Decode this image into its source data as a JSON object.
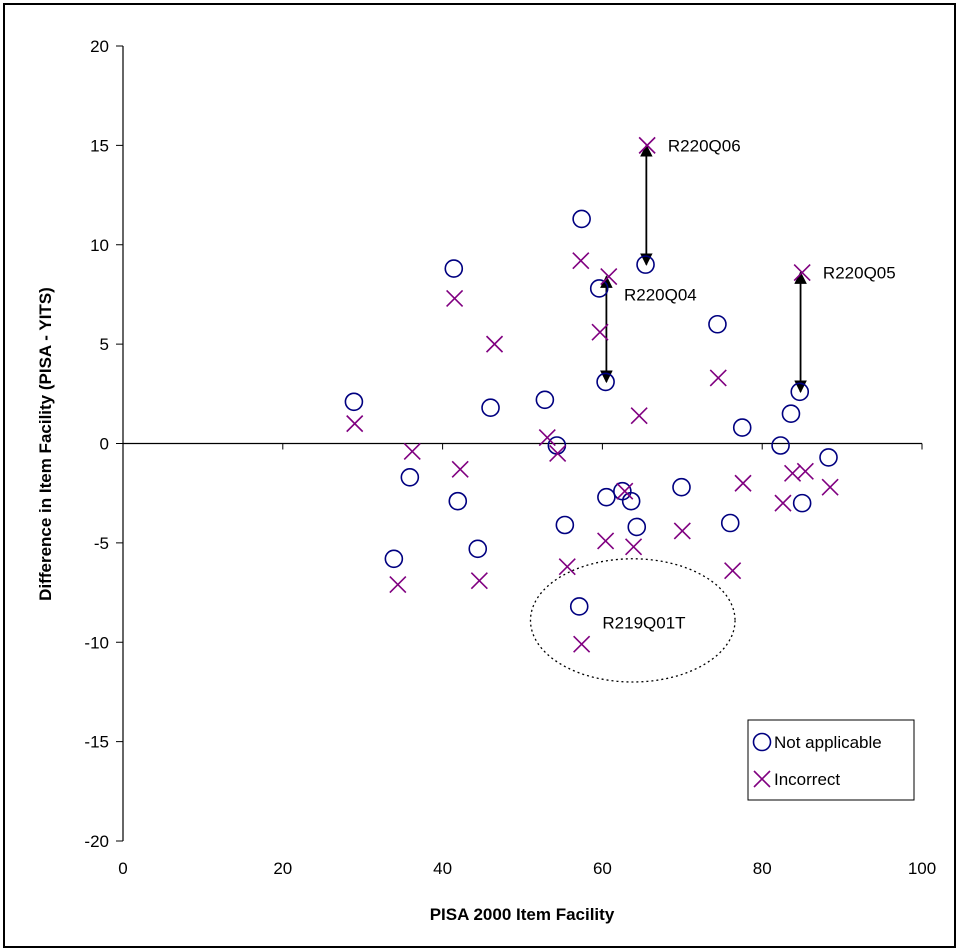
{
  "chart_data": {
    "type": "scatter",
    "title": "",
    "xlabel": "PISA 2000 Item Facility",
    "ylabel": "Difference in Item Facility (PISA - YITS)",
    "xlim": [
      0,
      100
    ],
    "ylim": [
      -20,
      20
    ],
    "x_ticks": [
      "0",
      "20",
      "40",
      "60",
      "80",
      "100"
    ],
    "y_ticks": [
      "20",
      "15",
      "10",
      "5",
      "0",
      "-5",
      "-10",
      "-15",
      "-20"
    ],
    "grid": false,
    "legend_position": "bottom-right",
    "series": [
      {
        "name": "Not applicable",
        "marker": "circle",
        "color": "#000080",
        "points": [
          [
            28.9,
            2.1
          ],
          [
            33.9,
            -5.8
          ],
          [
            35.9,
            -1.7
          ],
          [
            41.4,
            8.8
          ],
          [
            41.9,
            -2.9
          ],
          [
            44.4,
            -5.3
          ],
          [
            46.0,
            1.8
          ],
          [
            52.8,
            2.2
          ],
          [
            54.3,
            -0.1
          ],
          [
            55.3,
            -4.1
          ],
          [
            57.1,
            -8.2
          ],
          [
            57.4,
            11.3
          ],
          [
            59.6,
            7.8
          ],
          [
            60.5,
            -2.7
          ],
          [
            60.4,
            3.1
          ],
          [
            62.5,
            -2.4
          ],
          [
            63.6,
            -2.9
          ],
          [
            64.3,
            -4.2
          ],
          [
            65.4,
            9.0
          ],
          [
            69.9,
            -2.2
          ],
          [
            74.4,
            6.0
          ],
          [
            76.0,
            -4.0
          ],
          [
            77.5,
            0.8
          ],
          [
            82.3,
            -0.1
          ],
          [
            83.6,
            1.5
          ],
          [
            84.7,
            2.6
          ],
          [
            85.0,
            -3.0
          ],
          [
            88.3,
            -0.7
          ]
        ]
      },
      {
        "name": "Incorrect",
        "marker": "x",
        "color": "#800080",
        "points": [
          [
            29.0,
            1.0
          ],
          [
            34.4,
            -7.1
          ],
          [
            36.2,
            -0.4
          ],
          [
            41.5,
            7.3
          ],
          [
            42.2,
            -1.3
          ],
          [
            44.6,
            -6.9
          ],
          [
            46.5,
            5.0
          ],
          [
            53.1,
            0.3
          ],
          [
            54.4,
            -0.5
          ],
          [
            55.6,
            -6.2
          ],
          [
            57.3,
            9.2
          ],
          [
            57.4,
            -10.1
          ],
          [
            59.7,
            5.6
          ],
          [
            60.4,
            -4.9
          ],
          [
            60.8,
            8.4
          ],
          [
            62.8,
            -2.4
          ],
          [
            63.9,
            -5.2
          ],
          [
            64.6,
            1.4
          ],
          [
            65.6,
            15.0
          ],
          [
            70.0,
            -4.4
          ],
          [
            74.5,
            3.3
          ],
          [
            76.3,
            -6.4
          ],
          [
            77.6,
            -2.0
          ],
          [
            82.6,
            -3.0
          ],
          [
            83.8,
            -1.5
          ],
          [
            85.0,
            8.6
          ],
          [
            85.4,
            -1.4
          ],
          [
            88.5,
            -2.2
          ]
        ]
      }
    ],
    "annotations": [
      {
        "text": "R220Q06",
        "x": 68.2,
        "y": 15.0,
        "arrow_x": 65.5,
        "arrow_from": 15.0,
        "arrow_to": 9.0
      },
      {
        "text": "R220Q04",
        "x": 62.7,
        "y": 7.5,
        "arrow_x": 60.5,
        "arrow_from": 8.4,
        "arrow_to": 3.1
      },
      {
        "text": "R220Q05",
        "x": 87.6,
        "y": 8.6,
        "arrow_x": 84.8,
        "arrow_from": 8.6,
        "arrow_to": 2.6
      },
      {
        "text": "R219Q01T",
        "x": 60.0,
        "y": -9.0,
        "ellipse": {
          "cx": 63.8,
          "cy": -8.9,
          "rx": 12.8,
          "ry": 3.1
        }
      }
    ]
  }
}
